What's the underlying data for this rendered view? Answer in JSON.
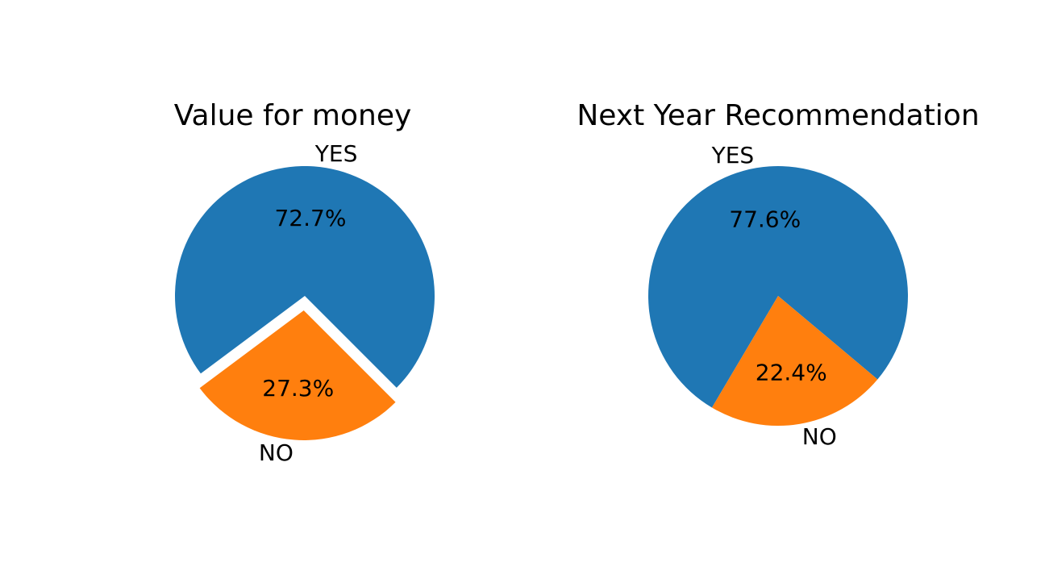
{
  "chart_data": [
    {
      "type": "pie",
      "title": "Value for money",
      "slices": [
        {
          "label": "YES",
          "value": 72.7,
          "pct_text": "72.7%",
          "color": "#1f77b4",
          "exploded": false
        },
        {
          "label": "NO",
          "value": 27.3,
          "pct_text": "27.3%",
          "color": "#ff7f0e",
          "exploded": true
        }
      ]
    },
    {
      "type": "pie",
      "title": "Next Year Recommendation",
      "slices": [
        {
          "label": "YES",
          "value": 77.6,
          "pct_text": "77.6%",
          "color": "#1f77b4",
          "exploded": false
        },
        {
          "label": "NO",
          "value": 22.4,
          "pct_text": "22.4%",
          "color": "#ff7f0e",
          "exploded": false
        }
      ]
    }
  ]
}
